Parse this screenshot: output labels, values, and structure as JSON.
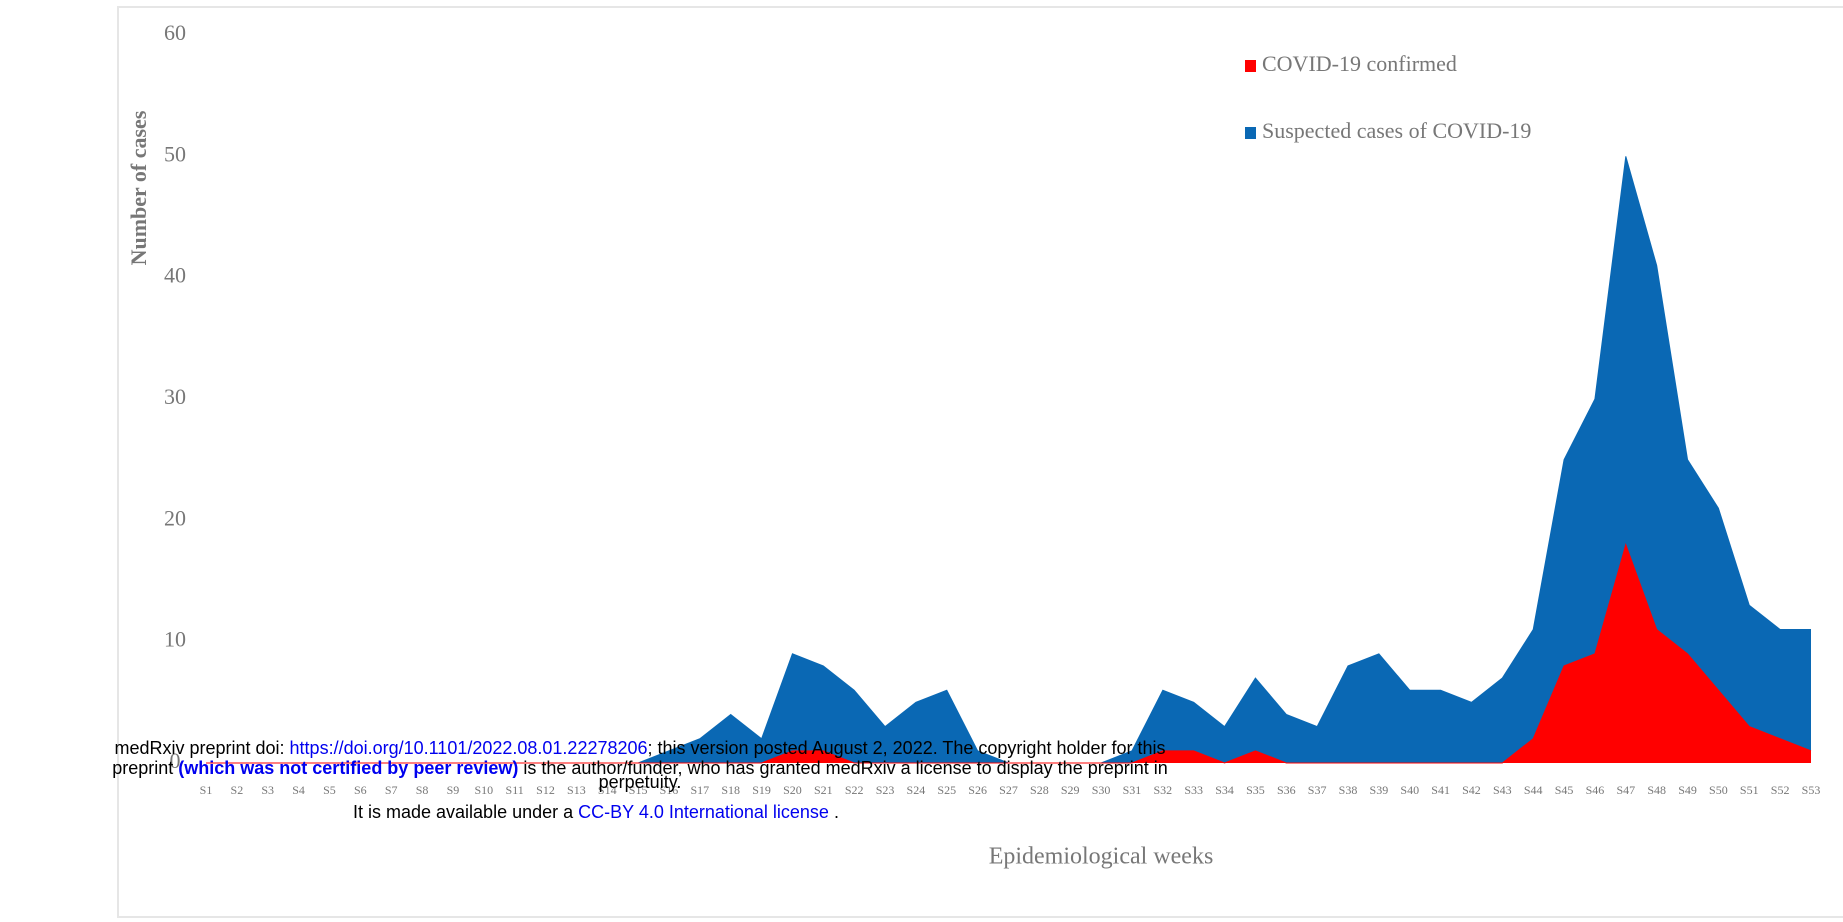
{
  "chart_data": {
    "type": "area",
    "y_label": "Number of cases",
    "x_label": "Epidemiological weeks",
    "categories": [
      "S1",
      "S2",
      "S3",
      "S4",
      "S5",
      "S6",
      "S7",
      "S8",
      "S9",
      "S10",
      "S11",
      "S12",
      "S13",
      "S14",
      "S15",
      "S16",
      "S17",
      "S18",
      "S19",
      "S20",
      "S21",
      "S22",
      "S23",
      "S24",
      "S25",
      "S26",
      "S27",
      "S28",
      "S29",
      "S30",
      "S31",
      "S32",
      "S33",
      "S34",
      "S35",
      "S36",
      "S37",
      "S38",
      "S39",
      "S40",
      "S41",
      "S42",
      "S43",
      "S44",
      "S45",
      "S46",
      "S47",
      "S48",
      "S49",
      "S50",
      "S51",
      "S52",
      "S53"
    ],
    "series": [
      {
        "name": "Suspected cases of COVID-19",
        "color": "#0a68b4",
        "values": [
          0,
          0,
          0,
          0,
          0,
          0,
          0,
          0,
          0,
          0,
          0,
          0,
          0,
          0,
          0,
          1,
          2,
          4,
          2,
          9,
          8,
          6,
          3,
          5,
          6,
          1,
          0,
          0,
          0,
          0,
          1,
          6,
          5,
          3,
          7,
          4,
          3,
          8,
          9,
          6,
          6,
          5,
          7,
          11,
          25,
          30,
          50,
          41,
          25,
          21,
          13,
          11,
          11
        ]
      },
      {
        "name": "COVID-19 confirmed",
        "color": "#ff0000",
        "values": [
          0,
          0,
          0,
          0,
          0,
          0,
          0,
          0,
          0,
          0,
          0,
          0,
          0,
          0,
          0,
          0,
          0,
          0,
          0,
          1,
          1,
          0,
          0,
          0,
          0,
          0,
          0,
          0,
          0,
          0,
          0,
          1,
          1,
          0,
          1,
          0,
          0,
          0,
          0,
          0,
          0,
          0,
          0,
          2,
          8,
          9,
          18,
          11,
          9,
          6,
          3,
          2,
          1
        ]
      }
    ],
    "legend_order": [
      1,
      0
    ],
    "ylim": [
      0,
      60
    ],
    "yticks": [
      0,
      10,
      20,
      30,
      40,
      50,
      60
    ],
    "grid": false
  },
  "notice": {
    "line1_a": "medRxiv preprint doi: ",
    "line1_link": "https://doi.org/10.1101/2022.08.01.22278206",
    "line1_b": "; this version posted August 2, 2022. The copyright holder for this",
    "line2_a": "preprint ",
    "line2_bold": "(which was not certified by peer review)",
    "line2_b": " is the author/funder, who has granted medRxiv a license to display the preprint in",
    "line3": "perpetuity.",
    "line4_a": "It is made available under a ",
    "line4_link": "CC-BY 4.0 International license",
    "line4_b": " ."
  }
}
